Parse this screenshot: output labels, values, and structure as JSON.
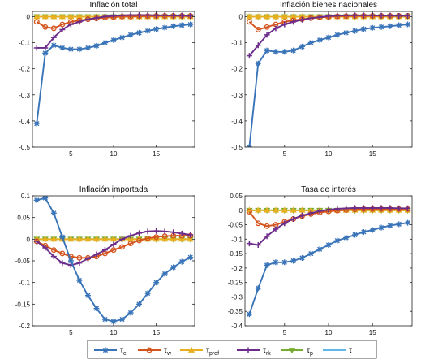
{
  "chart_data": [
    {
      "type": "line",
      "title": "Inflación total",
      "x": [
        1,
        2,
        3,
        4,
        5,
        6,
        7,
        8,
        9,
        10,
        11,
        12,
        13,
        14,
        15,
        16,
        17,
        18,
        19
      ],
      "ylim": [
        -0.5,
        0.02
      ],
      "xticks": [
        5,
        10,
        15
      ],
      "yticks": [
        0,
        -0.1,
        -0.2,
        -0.3,
        -0.4,
        -0.5
      ],
      "ytick_labels": [
        "0",
        "-0.1",
        "-0.2",
        "-0.3",
        "-0.4",
        "-0.5"
      ],
      "series": [
        {
          "key": "tc",
          "values": [
            -0.41,
            -0.14,
            -0.11,
            -0.12,
            -0.125,
            -0.125,
            -0.12,
            -0.112,
            -0.1,
            -0.09,
            -0.08,
            -0.07,
            -0.062,
            -0.055,
            -0.048,
            -0.042,
            -0.037,
            -0.033,
            -0.03
          ]
        },
        {
          "key": "tw",
          "values": [
            -0.02,
            -0.04,
            -0.045,
            -0.03,
            -0.02,
            -0.015,
            -0.01,
            -0.007,
            -0.004,
            -0.002,
            0,
            0,
            0.002,
            0.002,
            0.003,
            0.003,
            0.003,
            0.003,
            0.003
          ]
        },
        {
          "key": "tprof",
          "values": [
            0,
            0,
            0,
            0,
            0,
            0,
            0,
            0,
            0,
            0,
            0,
            0,
            0,
            0,
            0,
            0,
            0,
            0,
            0
          ]
        },
        {
          "key": "trk",
          "values": [
            -0.12,
            -0.12,
            -0.08,
            -0.05,
            -0.03,
            -0.02,
            -0.01,
            -0.005,
            0,
            0.003,
            0.005,
            0.006,
            0.006,
            0.006,
            0.005,
            0.005,
            0.004,
            0.004,
            0.003
          ]
        },
        {
          "key": "tp",
          "values": [
            0,
            0,
            0,
            0,
            0,
            0,
            0,
            0,
            0,
            0,
            0,
            0,
            0,
            0,
            0,
            0,
            0,
            0,
            0
          ]
        },
        {
          "key": "t",
          "values": [
            0,
            0,
            0,
            0,
            0,
            0,
            0,
            0,
            0,
            0,
            0,
            0,
            0,
            0,
            0,
            0,
            0,
            0,
            0
          ]
        }
      ]
    },
    {
      "type": "line",
      "title": "Inflación bienes nacionales",
      "x": [
        1,
        2,
        3,
        4,
        5,
        6,
        7,
        8,
        9,
        10,
        11,
        12,
        13,
        14,
        15,
        16,
        17,
        18,
        19
      ],
      "ylim": [
        -0.5,
        0.02
      ],
      "xticks": [
        5,
        10,
        15
      ],
      "yticks": [
        0,
        -0.1,
        -0.2,
        -0.3,
        -0.4,
        -0.5
      ],
      "ytick_labels": [
        "0",
        "-0.1",
        "-0.2",
        "-0.3",
        "-0.4",
        "-0.5"
      ],
      "series": [
        {
          "key": "tc",
          "values": [
            -0.5,
            -0.18,
            -0.13,
            -0.135,
            -0.135,
            -0.13,
            -0.115,
            -0.1,
            -0.09,
            -0.08,
            -0.07,
            -0.062,
            -0.055,
            -0.048,
            -0.043,
            -0.04,
            -0.037,
            -0.033,
            -0.03
          ]
        },
        {
          "key": "tw",
          "values": [
            -0.02,
            -0.05,
            -0.04,
            -0.03,
            -0.02,
            -0.014,
            -0.01,
            -0.006,
            -0.003,
            -0.001,
            0.001,
            0.002,
            0.003,
            0.003,
            0.003,
            0.003,
            0.003,
            0.003,
            0.003
          ]
        },
        {
          "key": "tprof",
          "values": [
            0,
            0,
            0,
            0,
            0,
            0,
            0,
            0,
            0,
            0,
            0,
            0,
            0,
            0,
            0,
            0,
            0,
            0,
            0
          ]
        },
        {
          "key": "trk",
          "values": [
            -0.15,
            -0.11,
            -0.07,
            -0.045,
            -0.03,
            -0.02,
            -0.012,
            -0.006,
            -0.002,
            0.002,
            0.004,
            0.005,
            0.005,
            0.005,
            0.005,
            0.004,
            0.004,
            0.003,
            0.003
          ]
        },
        {
          "key": "tp",
          "values": [
            0,
            0,
            0,
            0,
            0,
            0,
            0,
            0,
            0,
            0,
            0,
            0,
            0,
            0,
            0,
            0,
            0,
            0,
            0
          ]
        },
        {
          "key": "t",
          "values": [
            0,
            0,
            0,
            0,
            0,
            0,
            0,
            0,
            0,
            0,
            0,
            0,
            0,
            0,
            0,
            0,
            0,
            0,
            0
          ]
        }
      ]
    },
    {
      "type": "line",
      "title": "Inflación importada",
      "x": [
        1,
        2,
        3,
        4,
        5,
        6,
        7,
        8,
        9,
        10,
        11,
        12,
        13,
        14,
        15,
        16,
        17,
        18,
        19
      ],
      "ylim": [
        -0.2,
        0.1
      ],
      "xticks": [
        5,
        10,
        15
      ],
      "yticks": [
        0.1,
        0.05,
        0,
        -0.05,
        -0.1,
        -0.15,
        -0.2
      ],
      "ytick_labels": [
        "0.1",
        "0.05",
        "0",
        "-0.05",
        "-0.1",
        "-0.15",
        "-0.2"
      ],
      "series": [
        {
          "key": "tc",
          "values": [
            0.09,
            0.095,
            0.06,
            0.005,
            -0.05,
            -0.095,
            -0.13,
            -0.16,
            -0.185,
            -0.19,
            -0.185,
            -0.17,
            -0.15,
            -0.125,
            -0.1,
            -0.08,
            -0.065,
            -0.052,
            -0.042
          ]
        },
        {
          "key": "tw",
          "values": [
            -0.005,
            -0.015,
            -0.025,
            -0.033,
            -0.04,
            -0.043,
            -0.043,
            -0.04,
            -0.033,
            -0.025,
            -0.018,
            -0.01,
            -0.003,
            0.002,
            0.005,
            0.007,
            0.008,
            0.008,
            0.008
          ]
        },
        {
          "key": "tprof",
          "values": [
            0,
            0,
            0,
            0,
            0,
            0,
            0,
            0,
            0,
            0,
            0,
            0,
            0,
            0,
            0,
            0,
            0,
            0,
            0
          ]
        },
        {
          "key": "trk",
          "values": [
            -0.005,
            -0.02,
            -0.04,
            -0.055,
            -0.06,
            -0.055,
            -0.045,
            -0.035,
            -0.025,
            -0.012,
            0,
            0.008,
            0.014,
            0.018,
            0.019,
            0.018,
            0.016,
            0.013,
            0.01
          ]
        },
        {
          "key": "tp",
          "values": [
            0,
            0,
            0,
            0,
            0,
            0,
            0,
            0,
            0,
            0,
            0,
            0,
            0,
            0,
            0,
            0,
            0,
            0,
            0
          ]
        },
        {
          "key": "t",
          "values": [
            0,
            0,
            0,
            0,
            0,
            0,
            0,
            0,
            0,
            0,
            0,
            0,
            0,
            0,
            0,
            0,
            0,
            0,
            0
          ]
        }
      ]
    },
    {
      "type": "line",
      "title": "Tasa de interés",
      "x": [
        1,
        2,
        3,
        4,
        5,
        6,
        7,
        8,
        9,
        10,
        11,
        12,
        13,
        14,
        15,
        16,
        17,
        18,
        19
      ],
      "ylim": [
        -0.4,
        0.05
      ],
      "xticks": [
        5,
        10,
        15
      ],
      "yticks": [
        0.05,
        0,
        -0.05,
        -0.1,
        -0.15,
        -0.2,
        -0.25,
        -0.3,
        -0.35,
        -0.4
      ],
      "ytick_labels": [
        "0.05",
        "0",
        "-0.05",
        "-0.1",
        "-0.15",
        "-0.2",
        "-0.25",
        "-0.3",
        "-0.35",
        "-0.4"
      ],
      "series": [
        {
          "key": "tc",
          "values": [
            -0.36,
            -0.27,
            -0.19,
            -0.18,
            -0.18,
            -0.175,
            -0.165,
            -0.15,
            -0.135,
            -0.12,
            -0.105,
            -0.095,
            -0.085,
            -0.075,
            -0.068,
            -0.06,
            -0.053,
            -0.048,
            -0.043
          ]
        },
        {
          "key": "tw",
          "values": [
            -0.005,
            -0.045,
            -0.055,
            -0.05,
            -0.04,
            -0.03,
            -0.02,
            -0.013,
            -0.008,
            -0.004,
            -0.001,
            0.001,
            0.003,
            0.004,
            0.004,
            0.004,
            0.004,
            0.004,
            0.004
          ]
        },
        {
          "key": "tprof",
          "values": [
            0,
            0,
            0,
            0,
            0,
            0,
            0,
            0,
            0,
            0,
            0,
            0,
            0,
            0,
            0,
            0,
            0,
            0,
            0
          ]
        },
        {
          "key": "trk",
          "values": [
            -0.115,
            -0.12,
            -0.09,
            -0.065,
            -0.045,
            -0.03,
            -0.018,
            -0.01,
            -0.003,
            0.002,
            0.005,
            0.007,
            0.008,
            0.008,
            0.008,
            0.008,
            0.008,
            0.007,
            0.007
          ]
        },
        {
          "key": "tp",
          "values": [
            0,
            0,
            0,
            0,
            0,
            0,
            0,
            0,
            0,
            0,
            0,
            0,
            0,
            0,
            0,
            0,
            0,
            0,
            0
          ]
        },
        {
          "key": "t",
          "values": [
            0,
            0,
            0,
            0,
            0,
            0,
            0,
            0,
            0,
            0,
            0,
            0,
            0,
            0,
            0,
            0,
            0,
            0,
            0
          ]
        }
      ]
    }
  ],
  "legend": {
    "placement": "bottom",
    "entries": [
      {
        "key": "tc",
        "base": "τ",
        "sub": "c",
        "color": "#3a74b8",
        "marker": "asterisk"
      },
      {
        "key": "tw",
        "base": "τ",
        "sub": "w",
        "color": "#d4541e",
        "marker": "circle"
      },
      {
        "key": "tprof",
        "base": "τ",
        "sub": "prof",
        "color": "#e8b020",
        "marker": "triangle"
      },
      {
        "key": "trk",
        "base": "τ",
        "sub": "rk",
        "color": "#6b2c8a",
        "marker": "plus"
      },
      {
        "key": "tp",
        "base": "τ",
        "sub": "p",
        "color": "#77ac30",
        "marker": "triangle-down"
      },
      {
        "key": "t",
        "base": "τ",
        "sub": "",
        "color": "#5fb8e8",
        "marker": "none"
      }
    ]
  }
}
